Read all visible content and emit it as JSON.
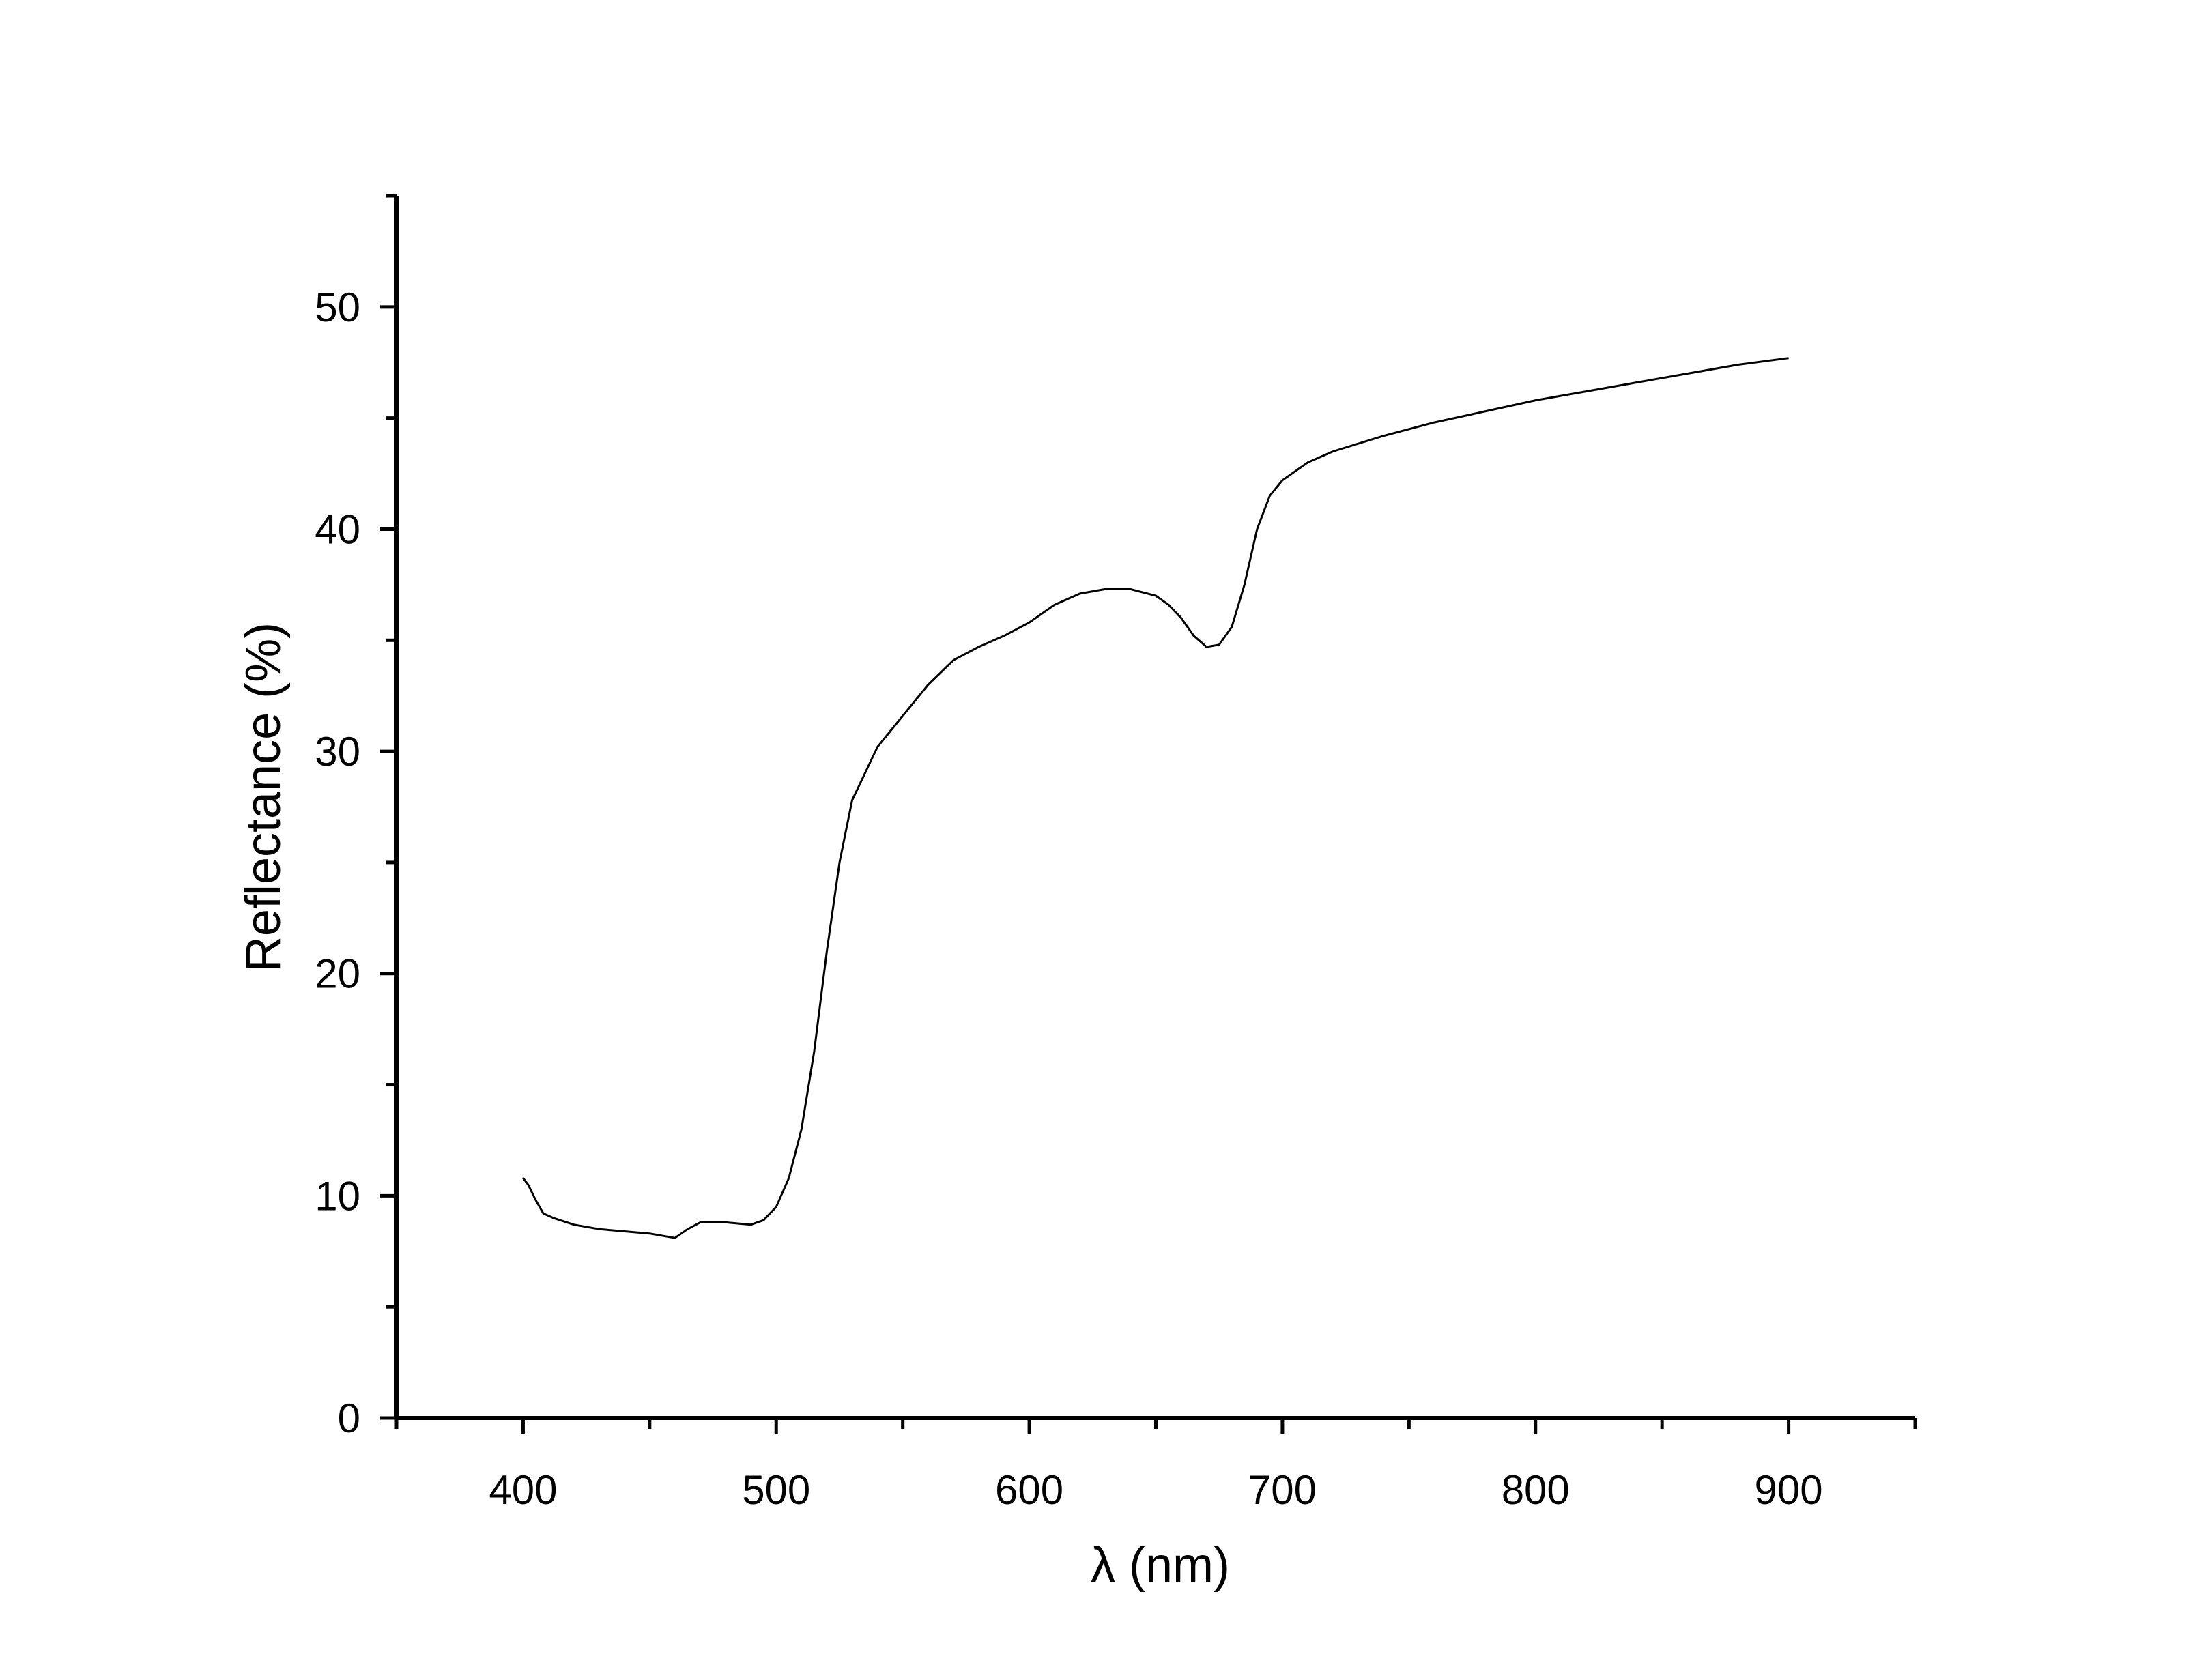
{
  "chart_data": {
    "type": "line",
    "title": "",
    "xlabel": "λ (nm)",
    "ylabel": "Reflectance (%)",
    "xlim": [
      350,
      950
    ],
    "ylim": [
      0,
      55
    ],
    "xticks": [
      400,
      500,
      600,
      700,
      800,
      900
    ],
    "yticks": [
      0,
      10,
      20,
      30,
      40,
      50
    ],
    "x_minor_step": 50,
    "y_minor_step": 5,
    "grid": false,
    "legend": "none",
    "line_color": "#000000",
    "series": [
      {
        "x": [
          400,
          402,
          405,
          408,
          412,
          420,
          430,
          440,
          450,
          460,
          465,
          470,
          480,
          490,
          495,
          500,
          505,
          510,
          515,
          520,
          525,
          530,
          540,
          550,
          560,
          570,
          580,
          590,
          600,
          610,
          620,
          630,
          640,
          650,
          655,
          660,
          665,
          670,
          675,
          680,
          685,
          690,
          695,
          700,
          710,
          720,
          740,
          760,
          780,
          800,
          820,
          840,
          860,
          880,
          900
        ],
        "y": [
          10.8,
          10.5,
          9.8,
          9.2,
          9.0,
          8.7,
          8.5,
          8.4,
          8.3,
          8.1,
          8.5,
          8.8,
          8.8,
          8.7,
          8.9,
          9.5,
          10.8,
          13.0,
          16.5,
          21.0,
          25.0,
          27.8,
          30.2,
          31.6,
          33.0,
          34.1,
          34.7,
          35.2,
          35.8,
          36.6,
          37.1,
          37.3,
          37.3,
          37.0,
          36.6,
          36.0,
          35.2,
          34.7,
          34.8,
          35.6,
          37.5,
          40.0,
          41.5,
          42.2,
          43.0,
          43.5,
          44.2,
          44.8,
          45.3,
          45.8,
          46.2,
          46.6,
          47.0,
          47.4,
          47.7
        ]
      }
    ]
  }
}
